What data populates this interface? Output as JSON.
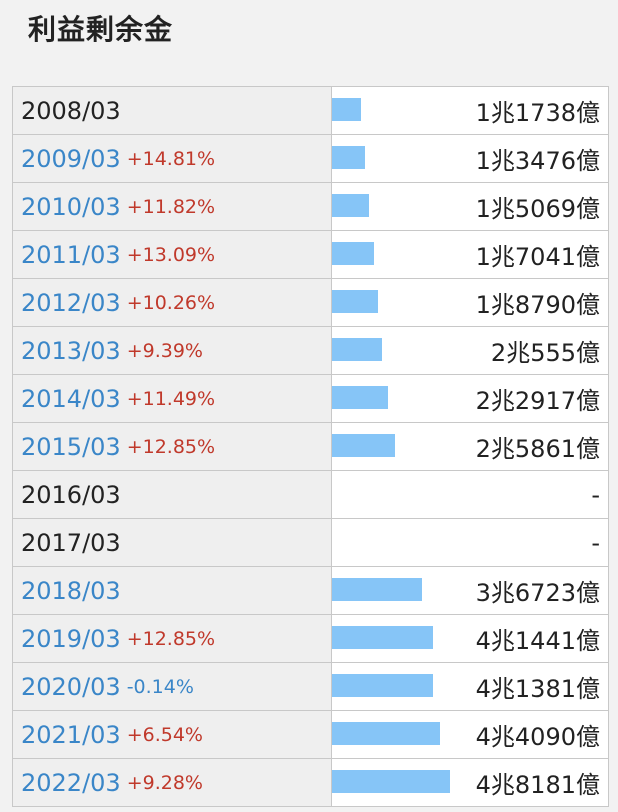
{
  "title": "利益剰余金",
  "bar_color": "#86c5f7",
  "max_value_oku": 48181,
  "rows": [
    {
      "year": "2008/03",
      "link": false,
      "change": "",
      "change_dir": "",
      "value": "1兆1738億",
      "amount_oku": 11738
    },
    {
      "year": "2009/03",
      "link": true,
      "change": "+14.81%",
      "change_dir": "pos",
      "value": "1兆3476億",
      "amount_oku": 13476
    },
    {
      "year": "2010/03",
      "link": true,
      "change": "+11.82%",
      "change_dir": "pos",
      "value": "1兆5069億",
      "amount_oku": 15069
    },
    {
      "year": "2011/03",
      "link": true,
      "change": "+13.09%",
      "change_dir": "pos",
      "value": "1兆7041億",
      "amount_oku": 17041
    },
    {
      "year": "2012/03",
      "link": true,
      "change": "+10.26%",
      "change_dir": "pos",
      "value": "1兆8790億",
      "amount_oku": 18790
    },
    {
      "year": "2013/03",
      "link": true,
      "change": "+9.39%",
      "change_dir": "pos",
      "value": "2兆555億",
      "amount_oku": 20555
    },
    {
      "year": "2014/03",
      "link": true,
      "change": "+11.49%",
      "change_dir": "pos",
      "value": "2兆2917億",
      "amount_oku": 22917
    },
    {
      "year": "2015/03",
      "link": true,
      "change": "+12.85%",
      "change_dir": "pos",
      "value": "2兆5861億",
      "amount_oku": 25861
    },
    {
      "year": "2016/03",
      "link": false,
      "change": "",
      "change_dir": "",
      "value": "-",
      "amount_oku": 0
    },
    {
      "year": "2017/03",
      "link": false,
      "change": "",
      "change_dir": "",
      "value": "-",
      "amount_oku": 0
    },
    {
      "year": "2018/03",
      "link": true,
      "change": "",
      "change_dir": "",
      "value": "3兆6723億",
      "amount_oku": 36723
    },
    {
      "year": "2019/03",
      "link": true,
      "change": "+12.85%",
      "change_dir": "pos",
      "value": "4兆1441億",
      "amount_oku": 41441
    },
    {
      "year": "2020/03",
      "link": true,
      "change": "-0.14%",
      "change_dir": "neg",
      "value": "4兆1381億",
      "amount_oku": 41381
    },
    {
      "year": "2021/03",
      "link": true,
      "change": "+6.54%",
      "change_dir": "pos",
      "value": "4兆4090億",
      "amount_oku": 44090
    },
    {
      "year": "2022/03",
      "link": true,
      "change": "+9.28%",
      "change_dir": "pos",
      "value": "4兆8181億",
      "amount_oku": 48181
    }
  ]
}
